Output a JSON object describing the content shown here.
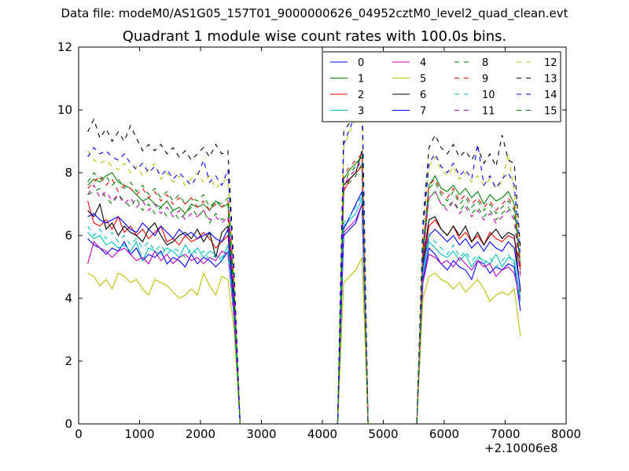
{
  "suptitle": "Data file: modeM0/AS1G05_157T01_9000000626_04952cztM0_level2_quad_clean.evt",
  "chart_data": {
    "type": "line",
    "title": "Quadrant 1 module wise count rates with 100.0s bins.",
    "xlabel": "",
    "ylabel": "",
    "x_offset_label": "+2.10006e8",
    "xlim": [
      0,
      8000
    ],
    "ylim": [
      0,
      12
    ],
    "xticks": [
      "0",
      "1000",
      "2000",
      "3000",
      "4000",
      "5000",
      "6000",
      "7000",
      "8000"
    ],
    "yticks": [
      "0",
      "2",
      "4",
      "6",
      "8",
      "10",
      "12"
    ],
    "grid": false,
    "legend_position": "top-right",
    "x": [
      150,
      250,
      350,
      450,
      550,
      650,
      750,
      850,
      950,
      1050,
      1150,
      1250,
      1350,
      1450,
      1550,
      1650,
      1750,
      1850,
      1950,
      2050,
      2150,
      2250,
      2350,
      2450,
      2550,
      2650,
      2750,
      4250,
      4350,
      4450,
      4550,
      4650,
      4750,
      4850,
      5550,
      5650,
      5750,
      5850,
      5950,
      6050,
      6150,
      6250,
      6350,
      6450,
      6550,
      6650,
      6750,
      6850,
      6950,
      7050,
      7150,
      7250
    ],
    "series": [
      {
        "name": "0",
        "color": "#0000ff",
        "dash": "solid",
        "values": [
          5.9,
          5.7,
          5.6,
          5.4,
          5.6,
          5.5,
          5.8,
          5.4,
          5.6,
          5.2,
          5.4,
          5.3,
          5.5,
          5.1,
          5.3,
          5.2,
          5.0,
          5.4,
          5.1,
          5.3,
          5.2,
          5.0,
          5.2,
          5.5,
          3.5,
          0,
          0,
          0,
          6.0,
          6.2,
          6.4,
          7.0,
          0,
          0,
          0,
          4.6,
          5.6,
          5.4,
          5.1,
          4.9,
          5.2,
          5.0,
          4.9,
          4.6,
          5.2,
          5.1,
          4.8,
          5.0,
          4.9,
          5.1,
          5.0,
          3.6
        ]
      },
      {
        "name": "1",
        "color": "#008000",
        "dash": "solid",
        "values": [
          7.6,
          7.8,
          7.7,
          7.9,
          8.0,
          7.7,
          7.6,
          7.5,
          7.3,
          7.1,
          7.2,
          7.0,
          6.9,
          7.1,
          6.8,
          6.9,
          6.7,
          7.0,
          6.9,
          7.0,
          6.8,
          7.1,
          6.9,
          7.0,
          4.0,
          0,
          0,
          0,
          7.8,
          8.1,
          8.3,
          8.5,
          0,
          0,
          0,
          5.5,
          7.6,
          7.9,
          7.5,
          7.4,
          7.6,
          7.3,
          7.5,
          7.2,
          7.4,
          7.0,
          7.3,
          7.1,
          7.2,
          7.4,
          7.0,
          5.0
        ]
      },
      {
        "name": "2",
        "color": "#ff0000",
        "dash": "solid",
        "values": [
          7.1,
          6.4,
          6.3,
          6.5,
          6.2,
          6.6,
          6.1,
          6.3,
          6.0,
          6.2,
          5.9,
          6.1,
          6.3,
          5.8,
          5.9,
          5.7,
          6.0,
          5.8,
          5.9,
          6.1,
          5.9,
          5.6,
          5.8,
          6.0,
          3.8,
          0,
          0,
          0,
          7.4,
          7.8,
          8.0,
          8.2,
          0,
          0,
          0,
          5.0,
          6.3,
          6.5,
          6.2,
          6.0,
          6.3,
          5.9,
          6.1,
          5.8,
          6.0,
          5.7,
          6.1,
          5.9,
          5.8,
          6.0,
          5.9,
          4.9
        ]
      },
      {
        "name": "3",
        "color": "#00bfbf",
        "dash": "solid",
        "values": [
          6.1,
          5.9,
          6.0,
          5.7,
          5.8,
          5.6,
          5.7,
          5.5,
          5.8,
          5.2,
          5.6,
          5.5,
          5.4,
          5.6,
          5.5,
          5.3,
          5.7,
          5.4,
          5.6,
          5.3,
          5.5,
          5.4,
          5.2,
          5.7,
          3.6,
          0,
          0,
          0,
          6.3,
          6.5,
          6.7,
          7.2,
          0,
          0,
          0,
          4.8,
          5.8,
          5.6,
          5.4,
          5.3,
          5.5,
          5.2,
          5.4,
          5.0,
          5.3,
          5.2,
          5.1,
          5.4,
          5.0,
          5.3,
          5.2,
          4.0
        ]
      },
      {
        "name": "4",
        "color": "#bf00bf",
        "dash": "solid",
        "values": [
          5.1,
          5.8,
          5.6,
          5.5,
          5.3,
          5.5,
          5.6,
          5.4,
          5.2,
          5.3,
          5.1,
          5.5,
          5.2,
          5.4,
          5.1,
          5.3,
          5.4,
          5.2,
          5.3,
          5.1,
          5.3,
          5.2,
          5.5,
          5.4,
          3.4,
          0,
          0,
          0,
          6.1,
          6.3,
          6.5,
          7.0,
          0,
          0,
          0,
          4.5,
          5.4,
          5.3,
          5.1,
          5.2,
          5.0,
          5.3,
          5.1,
          4.9,
          5.2,
          5.0,
          5.1,
          4.7,
          4.9,
          5.0,
          4.8,
          3.9
        ]
      },
      {
        "name": "5",
        "color": "#bfbf00",
        "dash": "solid",
        "values": [
          4.8,
          4.7,
          4.4,
          4.6,
          4.3,
          4.8,
          4.7,
          4.5,
          4.6,
          4.3,
          4.1,
          4.6,
          4.5,
          4.4,
          4.2,
          4.0,
          4.1,
          4.3,
          4.1,
          4.8,
          4.4,
          4.1,
          4.7,
          4.6,
          3.0,
          0,
          0,
          0,
          4.5,
          4.7,
          4.9,
          5.3,
          0,
          0,
          0,
          4.0,
          4.7,
          4.8,
          4.6,
          4.5,
          4.3,
          4.5,
          4.2,
          4.4,
          4.6,
          4.3,
          3.9,
          4.1,
          4.2,
          4.1,
          4.3,
          2.8
        ]
      },
      {
        "name": "6",
        "color": "#000000",
        "dash": "solid",
        "values": [
          6.8,
          6.6,
          7.0,
          6.2,
          6.4,
          6.0,
          6.3,
          6.1,
          6.0,
          5.8,
          6.2,
          6.4,
          6.0,
          5.7,
          5.8,
          6.0,
          6.1,
          5.9,
          6.2,
          5.8,
          6.1,
          5.3,
          6.1,
          6.3,
          3.9,
          0,
          0,
          0,
          7.6,
          7.8,
          8.0,
          8.7,
          0,
          0,
          0,
          5.2,
          6.5,
          6.6,
          6.2,
          6.0,
          6.3,
          6.0,
          6.3,
          5.8,
          6.1,
          5.7,
          6.0,
          6.2,
          5.9,
          6.1,
          6.0,
          4.2
        ]
      },
      {
        "name": "7",
        "color": "#0000ff",
        "dash": "solid",
        "values": [
          6.6,
          6.7,
          6.5,
          6.4,
          6.5,
          6.6,
          6.4,
          6.2,
          6.1,
          6.4,
          6.2,
          6.0,
          6.3,
          6.1,
          5.9,
          6.2,
          6.0,
          6.1,
          5.9,
          6.0,
          6.1,
          5.9,
          5.8,
          6.2,
          3.7,
          0,
          0,
          0,
          6.2,
          6.6,
          7.0,
          7.4,
          0,
          0,
          0,
          5.0,
          6.0,
          6.2,
          6.0,
          5.8,
          6.0,
          5.7,
          5.9,
          5.6,
          5.8,
          5.5,
          5.8,
          5.6,
          5.5,
          5.8,
          5.6,
          4.3
        ]
      },
      {
        "name": "8",
        "color": "#008000",
        "dash": "dashed",
        "values": [
          7.3,
          7.4,
          7.5,
          7.2,
          7.0,
          7.3,
          7.1,
          6.9,
          7.2,
          6.8,
          7.0,
          6.7,
          6.9,
          6.6,
          6.8,
          6.5,
          6.7,
          6.9,
          6.6,
          6.8,
          6.4,
          6.7,
          6.5,
          6.6,
          4.0,
          0,
          0,
          0,
          7.5,
          7.7,
          7.9,
          8.3,
          0,
          0,
          0,
          5.4,
          7.2,
          7.4,
          7.0,
          6.9,
          7.1,
          6.8,
          7.0,
          6.7,
          6.9,
          6.6,
          6.8,
          6.5,
          6.7,
          6.9,
          6.6,
          4.8
        ]
      },
      {
        "name": "9",
        "color": "#ff0000",
        "dash": "dashed",
        "values": [
          7.5,
          7.7,
          7.9,
          7.6,
          7.8,
          7.4,
          7.6,
          7.5,
          7.3,
          7.5,
          7.2,
          7.4,
          7.1,
          7.3,
          7.0,
          7.2,
          7.0,
          7.2,
          6.9,
          7.1,
          6.8,
          7.0,
          6.9,
          7.1,
          4.2,
          0,
          0,
          0,
          7.9,
          8.2,
          8.4,
          8.6,
          0,
          0,
          0,
          5.6,
          7.6,
          7.8,
          7.4,
          7.2,
          7.5,
          7.1,
          7.3,
          7.0,
          7.2,
          6.9,
          7.1,
          6.8,
          7.0,
          7.2,
          6.9,
          5.0
        ]
      },
      {
        "name": "10",
        "color": "#00bfbf",
        "dash": "dashed",
        "values": [
          6.3,
          6.0,
          6.2,
          5.9,
          6.1,
          5.8,
          6.0,
          5.7,
          5.9,
          5.6,
          5.8,
          5.5,
          5.7,
          5.4,
          5.6,
          5.5,
          5.3,
          5.6,
          5.4,
          5.5,
          5.2,
          5.4,
          5.3,
          5.5,
          3.4,
          0,
          0,
          0,
          6.4,
          6.6,
          6.9,
          7.3,
          0,
          0,
          0,
          4.9,
          6.0,
          5.8,
          5.6,
          5.4,
          5.7,
          5.3,
          5.5,
          5.2,
          5.4,
          5.1,
          5.3,
          5.0,
          5.2,
          5.4,
          5.1,
          3.9
        ]
      },
      {
        "name": "11",
        "color": "#bf00bf",
        "dash": "dashed",
        "values": [
          7.3,
          7.6,
          7.2,
          7.4,
          7.1,
          7.3,
          7.0,
          7.2,
          6.9,
          7.1,
          6.8,
          7.0,
          6.7,
          6.9,
          6.6,
          6.8,
          6.5,
          6.7,
          6.6,
          6.8,
          6.5,
          6.6,
          6.4,
          6.6,
          3.9,
          0,
          0,
          0,
          7.6,
          7.9,
          8.1,
          8.4,
          0,
          0,
          0,
          5.3,
          7.2,
          7.4,
          7.0,
          6.8,
          7.1,
          6.7,
          6.9,
          6.6,
          6.8,
          6.5,
          6.7,
          6.4,
          6.6,
          6.8,
          6.5,
          4.7
        ]
      },
      {
        "name": "12",
        "color": "#bfbf00",
        "dash": "dashed",
        "values": [
          8.7,
          8.4,
          8.3,
          8.4,
          8.2,
          8.1,
          8.3,
          8.0,
          8.2,
          7.9,
          8.1,
          8.3,
          7.8,
          8.0,
          7.7,
          7.9,
          7.6,
          7.8,
          8.0,
          7.7,
          7.9,
          7.5,
          7.7,
          7.8,
          4.6,
          0,
          0,
          0,
          8.8,
          9.3,
          9.7,
          9.9,
          0,
          0,
          0,
          6.1,
          8.2,
          8.5,
          8.1,
          7.9,
          8.2,
          7.8,
          8.0,
          7.7,
          7.9,
          7.6,
          7.8,
          7.5,
          7.7,
          8.6,
          7.4,
          5.2
        ]
      },
      {
        "name": "13",
        "color": "#000000",
        "dash": "dashed",
        "values": [
          9.3,
          9.7,
          9.1,
          9.4,
          9.0,
          9.3,
          9.0,
          9.5,
          9.1,
          8.7,
          8.9,
          8.7,
          8.9,
          8.6,
          8.8,
          8.5,
          8.7,
          8.4,
          8.6,
          8.8,
          8.5,
          8.9,
          8.6,
          8.7,
          5.0,
          0,
          0,
          0,
          9.3,
          9.6,
          9.8,
          10.3,
          0,
          0,
          0,
          6.4,
          8.8,
          9.2,
          8.8,
          8.6,
          8.9,
          8.5,
          8.7,
          8.4,
          8.8,
          8.3,
          8.6,
          8.2,
          9.2,
          8.4,
          8.3,
          5.6
        ]
      },
      {
        "name": "14",
        "color": "#0000ff",
        "dash": "dashed",
        "values": [
          8.5,
          8.8,
          8.6,
          8.7,
          8.5,
          8.4,
          8.6,
          8.3,
          8.1,
          8.3,
          8.0,
          8.2,
          7.9,
          8.1,
          7.8,
          8.0,
          7.8,
          7.6,
          7.9,
          8.4,
          7.7,
          7.9,
          7.6,
          8.1,
          4.7,
          0,
          0,
          0,
          8.9,
          9.4,
          9.9,
          10.8,
          0,
          0,
          0,
          6.2,
          8.3,
          8.6,
          8.2,
          8.0,
          8.3,
          7.9,
          8.1,
          7.8,
          8.9,
          7.6,
          7.9,
          7.5,
          7.8,
          8.0,
          7.6,
          5.3
        ]
      },
      {
        "name": "15",
        "color": "#008000",
        "dash": "dashed",
        "values": [
          7.7,
          8.0,
          7.8,
          7.9,
          7.6,
          7.8,
          7.5,
          7.7,
          7.4,
          7.6,
          7.3,
          7.5,
          7.2,
          7.4,
          7.1,
          7.3,
          7.0,
          7.2,
          7.1,
          7.3,
          6.9,
          7.1,
          7.0,
          7.2,
          4.3,
          0,
          0,
          0,
          7.7,
          8.0,
          8.2,
          8.6,
          0,
          0,
          0,
          5.7,
          7.5,
          7.7,
          7.3,
          7.1,
          7.4,
          7.0,
          7.2,
          6.9,
          7.1,
          6.8,
          7.0,
          6.7,
          6.9,
          7.1,
          6.8,
          5.1
        ]
      }
    ]
  }
}
